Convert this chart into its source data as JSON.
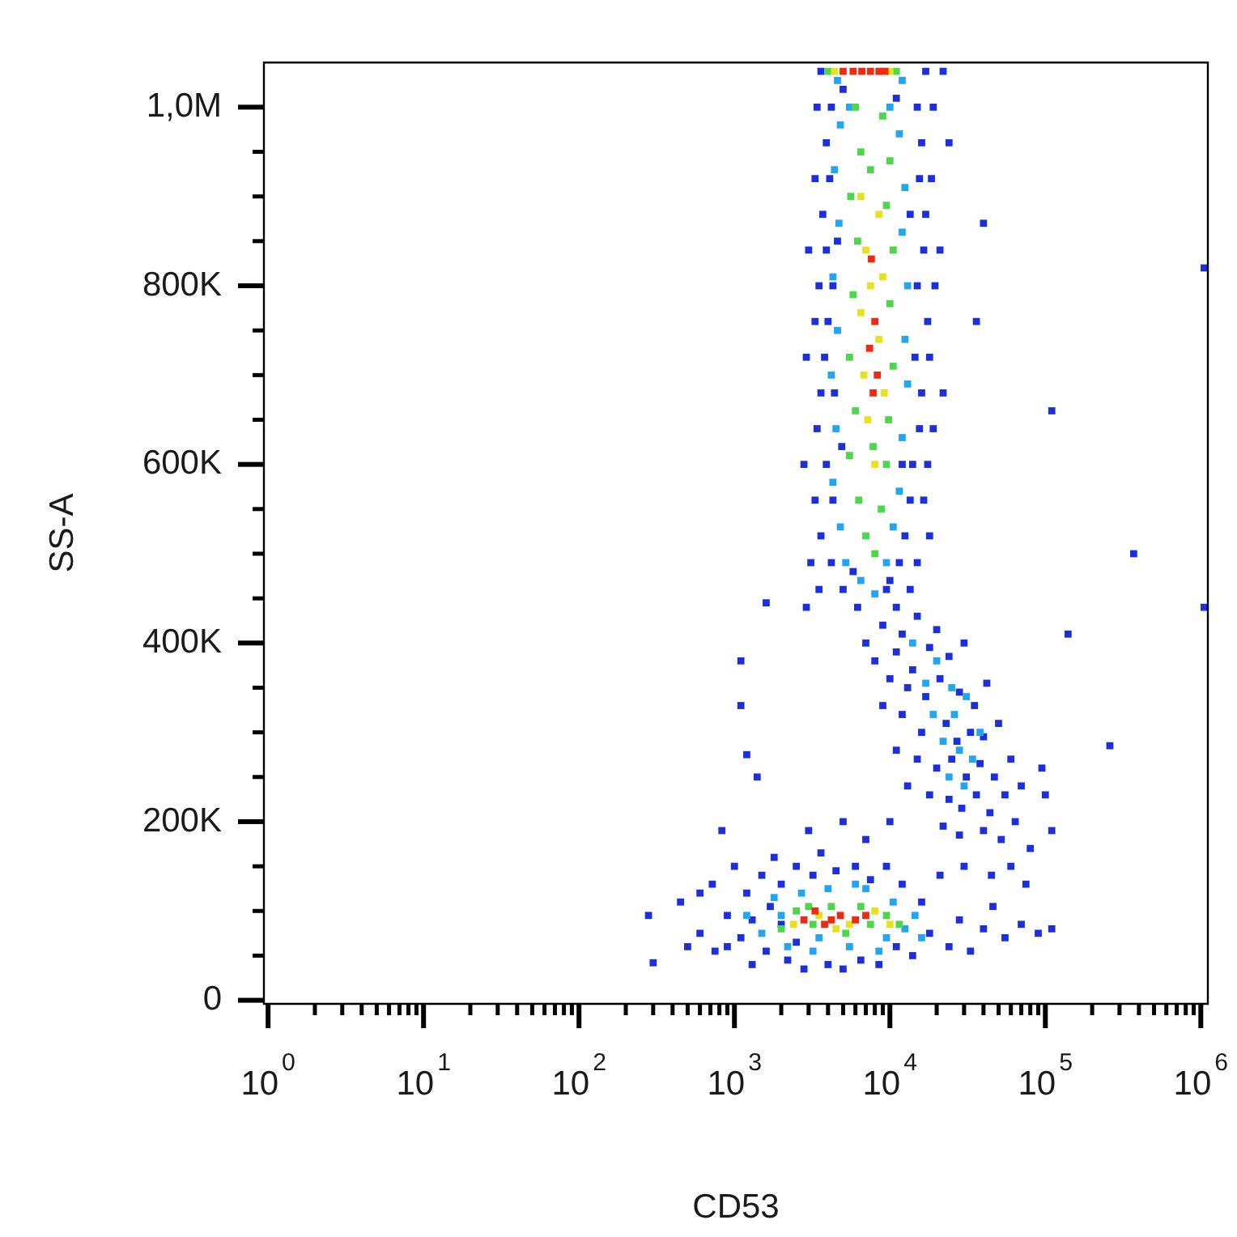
{
  "chart_data": {
    "type": "scatter",
    "xlabel": "CD53",
    "ylabel": "SS-A",
    "log": "x",
    "marker": "square",
    "xlim": [
      0.94,
      1110000
    ],
    "ylim": [
      -4000,
      1050000
    ],
    "xticks": [
      {
        "value": 1,
        "label": "10$^{0}$"
      },
      {
        "value": 2,
        "label": null
      },
      {
        "value": 3,
        "label": null
      },
      {
        "value": 4,
        "label": null
      },
      {
        "value": 5,
        "label": null
      },
      {
        "value": 6,
        "label": null
      },
      {
        "value": 7,
        "label": null
      },
      {
        "value": 8,
        "label": null
      },
      {
        "value": 9,
        "label": null
      },
      {
        "value": 10,
        "label": "10$^{1}$"
      },
      {
        "value": 20,
        "label": null
      },
      {
        "value": 30,
        "label": null
      },
      {
        "value": 40,
        "label": null
      },
      {
        "value": 50,
        "label": null
      },
      {
        "value": 60,
        "label": null
      },
      {
        "value": 70,
        "label": null
      },
      {
        "value": 80,
        "label": null
      },
      {
        "value": 90,
        "label": null
      },
      {
        "value": 100,
        "label": "10$^{2}$"
      },
      {
        "value": 200,
        "label": null
      },
      {
        "value": 300,
        "label": null
      },
      {
        "value": 400,
        "label": null
      },
      {
        "value": 500,
        "label": null
      },
      {
        "value": 600,
        "label": null
      },
      {
        "value": 700,
        "label": null
      },
      {
        "value": 800,
        "label": null
      },
      {
        "value": 900,
        "label": null
      },
      {
        "value": 1000,
        "label": "10$^{3}$"
      },
      {
        "value": 2000,
        "label": null
      },
      {
        "value": 3000,
        "label": null
      },
      {
        "value": 4000,
        "label": null
      },
      {
        "value": 5000,
        "label": null
      },
      {
        "value": 6000,
        "label": null
      },
      {
        "value": 7000,
        "label": null
      },
      {
        "value": 8000,
        "label": null
      },
      {
        "value": 9000,
        "label": null
      },
      {
        "value": 10000,
        "label": "10$^{4}$"
      },
      {
        "value": 20000,
        "label": null
      },
      {
        "value": 30000,
        "label": null
      },
      {
        "value": 40000,
        "label": null
      },
      {
        "value": 50000,
        "label": null
      },
      {
        "value": 60000,
        "label": null
      },
      {
        "value": 70000,
        "label": null
      },
      {
        "value": 80000,
        "label": null
      },
      {
        "value": 90000,
        "label": null
      },
      {
        "value": 100000,
        "label": "10$^{5}$"
      },
      {
        "value": 200000,
        "label": null
      },
      {
        "value": 300000,
        "label": null
      },
      {
        "value": 400000,
        "label": null
      },
      {
        "value": 500000,
        "label": null
      },
      {
        "value": 600000,
        "label": null
      },
      {
        "value": 700000,
        "label": null
      },
      {
        "value": 800000,
        "label": null
      },
      {
        "value": 900000,
        "label": null
      },
      {
        "value": 1000000,
        "label": "10$^{6}$"
      }
    ],
    "yticks": [
      0,
      {
        "value": 50000,
        "label": null
      },
      {
        "value": 100000,
        "label": null
      },
      {
        "value": 150000,
        "label": null
      },
      {
        "value": 200000,
        "label": "200K"
      },
      {
        "value": 250000,
        "label": null
      },
      {
        "value": 300000,
        "label": null
      },
      {
        "value": 350000,
        "label": null
      },
      {
        "value": 400000,
        "label": "400K"
      },
      {
        "value": 450000,
        "label": null
      },
      {
        "value": 500000,
        "label": null
      },
      {
        "value": 550000,
        "label": null
      },
      {
        "value": 600000,
        "label": "600K"
      },
      {
        "value": 650000,
        "label": null
      },
      {
        "value": 700000,
        "label": null
      },
      {
        "value": 750000,
        "label": null
      },
      {
        "value": 800000,
        "label": "800K"
      },
      {
        "value": 850000,
        "label": null
      },
      {
        "value": 900000,
        "label": null
      },
      {
        "value": 950000,
        "label": null
      },
      {
        "value": 1000000,
        "label": "1,0M"
      }
    ],
    "series": [
      {
        "color": "#1c2fdc",
        "x": [
          3600,
          17000,
          22000,
          3400,
          4200,
          15000,
          19000,
          3900,
          16000,
          24000,
          3300,
          4100,
          15500,
          18500,
          3700,
          17000,
          3000,
          3900,
          16500,
          21000,
          3500,
          4300,
          15000,
          19500,
          3300,
          4000,
          17500,
          2900,
          3800,
          14500,
          18000,
          3600,
          4400,
          16000,
          22000,
          3400,
          15500,
          19000,
          2800,
          3900,
          14000,
          17500,
          3300,
          4300,
          13500,
          16500,
          3600,
          12500,
          18000,
          3100,
          4200,
          11500,
          15000,
          3500,
          5000,
          9500,
          13500,
          2900,
          6200,
          11000,
          5000,
          11000,
          4600,
          13500,
          4900,
          12000,
          5800,
          10000,
          7000,
          8000,
          10000,
          9000,
          9000,
          12000,
          15000,
          20000,
          11000,
          14000,
          18000,
          24000,
          30000,
          13000,
          17000,
          21000,
          28000,
          35000,
          42000,
          12000,
          16000,
          23000,
          27000,
          33000,
          40000,
          50000,
          15000,
          20000,
          25000,
          31000,
          38000,
          47000,
          60000,
          18000,
          24000,
          29000,
          36000,
          44000,
          55000,
          70000,
          22000,
          28000,
          40000,
          52000,
          64000,
          80000,
          30000,
          45000,
          60000,
          75000,
          11000,
          13000,
          10000,
          100000,
          110000,
          95000,
          280,
          300,
          450,
          600,
          720,
          750,
          900,
          1000,
          1100,
          1200,
          1300,
          1500,
          1600,
          1800,
          2000,
          2200,
          2500,
          2800,
          3200,
          3600,
          4000,
          4500,
          5000,
          6000,
          6500,
          7500,
          8500,
          9500,
          11000,
          12000,
          14000,
          16000,
          18000,
          21000,
          24000,
          28000,
          33000,
          40000,
          46000,
          55000,
          70000,
          90000,
          110000,
          1300,
          900,
          2000,
          1700,
          2500,
          600,
          500,
          3000,
          5000,
          7000,
          1100,
          1100,
          1200,
          1400,
          1600,
          830,
          40000,
          36000,
          110000,
          1050000,
          370000,
          1050000,
          140000,
          260000
        ],
        "values": [
          1040000,
          1040000,
          1040000,
          1000000,
          1000000,
          1000000,
          1000000,
          960000,
          960000,
          960000,
          920000,
          920000,
          920000,
          920000,
          880000,
          880000,
          840000,
          840000,
          840000,
          840000,
          800000,
          800000,
          800000,
          800000,
          760000,
          760000,
          760000,
          720000,
          720000,
          720000,
          720000,
          680000,
          680000,
          680000,
          680000,
          640000,
          640000,
          640000,
          600000,
          600000,
          600000,
          600000,
          560000,
          560000,
          560000,
          560000,
          520000,
          520000,
          520000,
          490000,
          490000,
          490000,
          490000,
          460000,
          460000,
          460000,
          460000,
          440000,
          440000,
          440000,
          1020000,
          1010000,
          850000,
          880000,
          620000,
          600000,
          480000,
          470000,
          400000,
          380000,
          360000,
          330000,
          420000,
          410000,
          430000,
          415000,
          390000,
          370000,
          395000,
          385000,
          400000,
          350000,
          340000,
          360000,
          345000,
          330000,
          355000,
          320000,
          300000,
          310000,
          290000,
          300000,
          295000,
          310000,
          270000,
          260000,
          270000,
          250000,
          265000,
          250000,
          270000,
          230000,
          225000,
          215000,
          230000,
          210000,
          230000,
          240000,
          195000,
          185000,
          190000,
          180000,
          200000,
          170000,
          150000,
          140000,
          150000,
          130000,
          280000,
          240000,
          200000,
          230000,
          190000,
          260000,
          95000,
          42000,
          110000,
          75000,
          130000,
          55000,
          95000,
          150000,
          70000,
          120000,
          40000,
          140000,
          55000,
          160000,
          130000,
          45000,
          150000,
          35000,
          140000,
          165000,
          40000,
          145000,
          35000,
          150000,
          45000,
          135000,
          40000,
          150000,
          60000,
          130000,
          50000,
          110000,
          75000,
          140000,
          60000,
          90000,
          55000,
          80000,
          105000,
          70000,
          85000,
          75000,
          80000,
          90000,
          60000,
          85000,
          105000,
          65000,
          120000,
          60000,
          190000,
          200000,
          180000,
          380000,
          330000,
          275000,
          250000,
          445000,
          190000,
          870000,
          760000,
          660000,
          820000,
          500000,
          440000,
          410000,
          285000
        ]
      },
      {
        "color": "#22a6f2",
        "x": [
          4600,
          12000,
          5500,
          10000,
          4800,
          11500,
          4400,
          12500,
          4700,
          12000,
          4300,
          13000,
          4600,
          12500,
          4200,
          13000,
          4500,
          12000,
          4300,
          11500,
          4800,
          10500,
          5200,
          9500,
          6500,
          8000,
          14000,
          20000,
          25000,
          17000,
          19000,
          26000,
          31000,
          22000,
          28000,
          34000,
          38000,
          24000,
          30000,
          1200,
          1500,
          1800,
          2200,
          2700,
          3200,
          4000,
          5500,
          7000,
          8500,
          10500,
          12500,
          14500,
          16000,
          2000,
          9500,
          6000,
          3500
        ],
        "values": [
          1030000,
          1030000,
          1000000,
          1000000,
          980000,
          970000,
          930000,
          910000,
          870000,
          860000,
          810000,
          800000,
          750000,
          740000,
          700000,
          690000,
          640000,
          630000,
          580000,
          570000,
          530000,
          530000,
          490000,
          490000,
          470000,
          455000,
          400000,
          380000,
          350000,
          355000,
          320000,
          320000,
          340000,
          290000,
          280000,
          270000,
          300000,
          250000,
          240000,
          95000,
          75000,
          115000,
          60000,
          120000,
          55000,
          125000,
          60000,
          125000,
          55000,
          110000,
          80000,
          95000,
          70000,
          95000,
          70000,
          130000,
          70000
        ]
      },
      {
        "color": "#4cd84a",
        "x": [
          6000,
          9000,
          6500,
          10000,
          5600,
          9500,
          6200,
          10500,
          5800,
          10000,
          5500,
          10500,
          6000,
          9800,
          5500,
          9500,
          6300,
          8800,
          7000,
          8000,
          7500,
          7800,
          4000,
          11000,
          2000,
          2500,
          3200,
          4200,
          5200,
          7500,
          9500,
          11500,
          6500,
          3000
        ],
        "values": [
          1000000,
          990000,
          950000,
          940000,
          900000,
          890000,
          850000,
          840000,
          790000,
          780000,
          720000,
          710000,
          660000,
          650000,
          610000,
          600000,
          560000,
          550000,
          520000,
          500000,
          930000,
          620000,
          1040000,
          1040000,
          80000,
          100000,
          85000,
          105000,
          75000,
          85000,
          95000,
          85000,
          105000,
          105000
        ]
      },
      {
        "color": "#e6e21e",
        "x": [
          6500,
          8500,
          7000,
          9000,
          6500,
          8500,
          6800,
          9200,
          7200,
          8000,
          7500,
          4400,
          10000,
          2400,
          3500,
          5500,
          8000,
          4500,
          10000
        ],
        "values": [
          900000,
          880000,
          840000,
          810000,
          770000,
          740000,
          700000,
          680000,
          650000,
          600000,
          800000,
          1040000,
          1040000,
          85000,
          95000,
          85000,
          100000,
          80000,
          85000
        ]
      },
      {
        "color": "#ee2a12",
        "x": [
          7600,
          8000,
          7400,
          8300,
          7800,
          5000,
          5800,
          6600,
          7500,
          8500,
          9300,
          2800,
          3800,
          4800,
          6000,
          7000,
          3300,
          4200
        ],
        "values": [
          830000,
          760000,
          730000,
          700000,
          680000,
          1040000,
          1040000,
          1040000,
          1040000,
          1040000,
          1040000,
          90000,
          85000,
          95000,
          90000,
          95000,
          100000,
          90000
        ]
      }
    ]
  }
}
